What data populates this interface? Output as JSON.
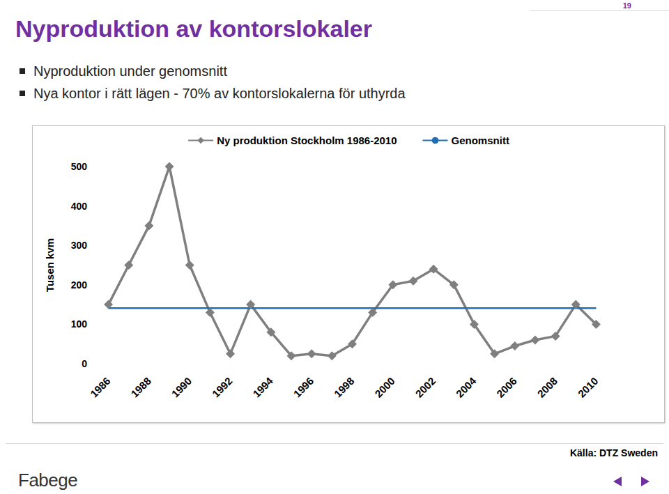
{
  "slide": {
    "title": "Nyproduktion av kontorslokaler",
    "page": "19",
    "bullets": [
      "Nyproduktion under genomsnitt",
      "Nya kontor i rätt lägen - 70% av kontorslokalerna för uthyrda"
    ],
    "source": "Källa: DTZ Sweden",
    "logo": "Fabege"
  },
  "chart_data": {
    "type": "line",
    "y_label": "Tusen kvm",
    "categories": [
      "1986",
      null,
      "1988",
      null,
      "1990",
      null,
      "1992",
      null,
      "1994",
      null,
      "1996",
      null,
      "1998",
      null,
      "2000",
      null,
      "2002",
      null,
      "2004",
      null,
      "2006",
      null,
      "2008",
      null,
      "2010"
    ],
    "series": [
      {
        "name": "Ny produktion Stockholm 1986-2010",
        "color": "#7f7f7f",
        "marker": "diamond",
        "values": [
          150,
          250,
          350,
          500,
          250,
          130,
          25,
          150,
          80,
          20,
          25,
          20,
          50,
          130,
          200,
          210,
          240,
          200,
          100,
          25,
          45,
          60,
          70,
          150,
          100
        ]
      },
      {
        "name": "Genomsnitt",
        "color": "#1f6fb5",
        "marker": "none",
        "values": [
          141,
          141,
          141,
          141,
          141,
          141,
          141,
          141,
          141,
          141,
          141,
          141,
          141,
          141,
          141,
          141,
          141,
          141,
          141,
          141,
          141,
          141,
          141,
          141,
          141
        ]
      }
    ],
    "ylim": [
      0,
      500
    ],
    "yticks": [
      0,
      100,
      200,
      300,
      400,
      500
    ],
    "grid": false,
    "legend": "top"
  }
}
